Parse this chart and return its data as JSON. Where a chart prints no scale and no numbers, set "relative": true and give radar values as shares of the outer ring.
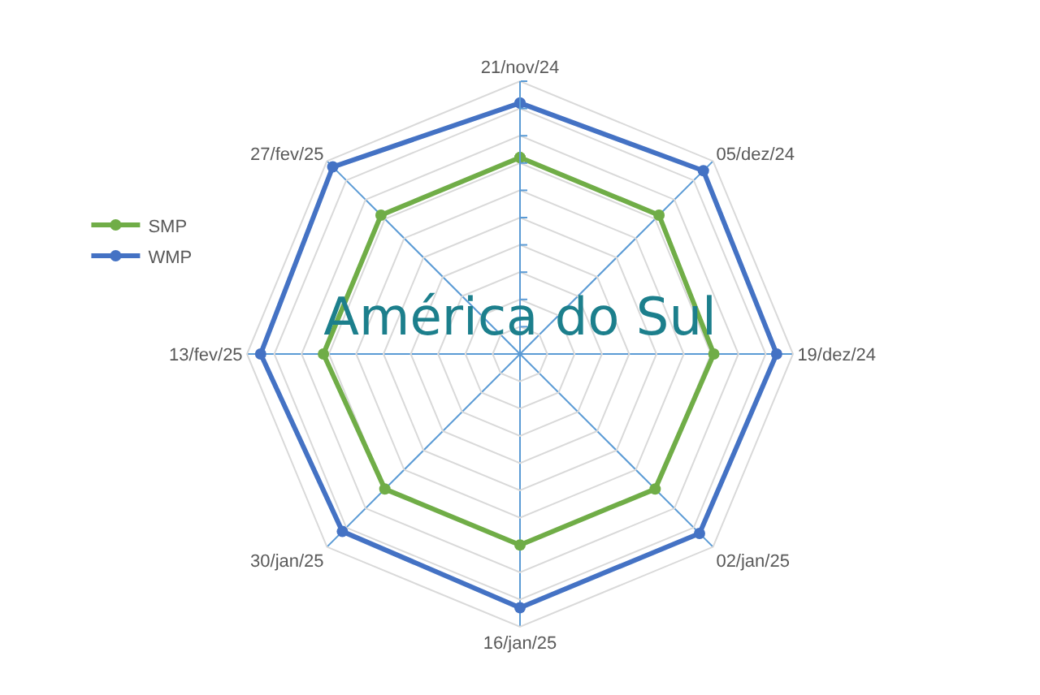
{
  "chart_data": {
    "type": "radar",
    "title": "América do Sul",
    "relative": true,
    "grid": true,
    "legend": "left",
    "marker": "circle",
    "line_style": "solid",
    "categories": [
      "21/nov/24",
      "05/dez/24",
      "19/dez/24",
      "02/jan/25",
      "16/jan/25",
      "30/jan/25",
      "13/fev/25",
      "27/fev/25"
    ],
    "series": [
      {
        "name": "SMP",
        "color": "#70ad47",
        "values": [
          0.72,
          0.72,
          0.71,
          0.7,
          0.7,
          0.7,
          0.72,
          0.72
        ]
      },
      {
        "name": "WMP",
        "color": "#4472c4",
        "values": [
          0.92,
          0.95,
          0.94,
          0.93,
          0.93,
          0.92,
          0.95,
          0.97
        ]
      }
    ]
  }
}
